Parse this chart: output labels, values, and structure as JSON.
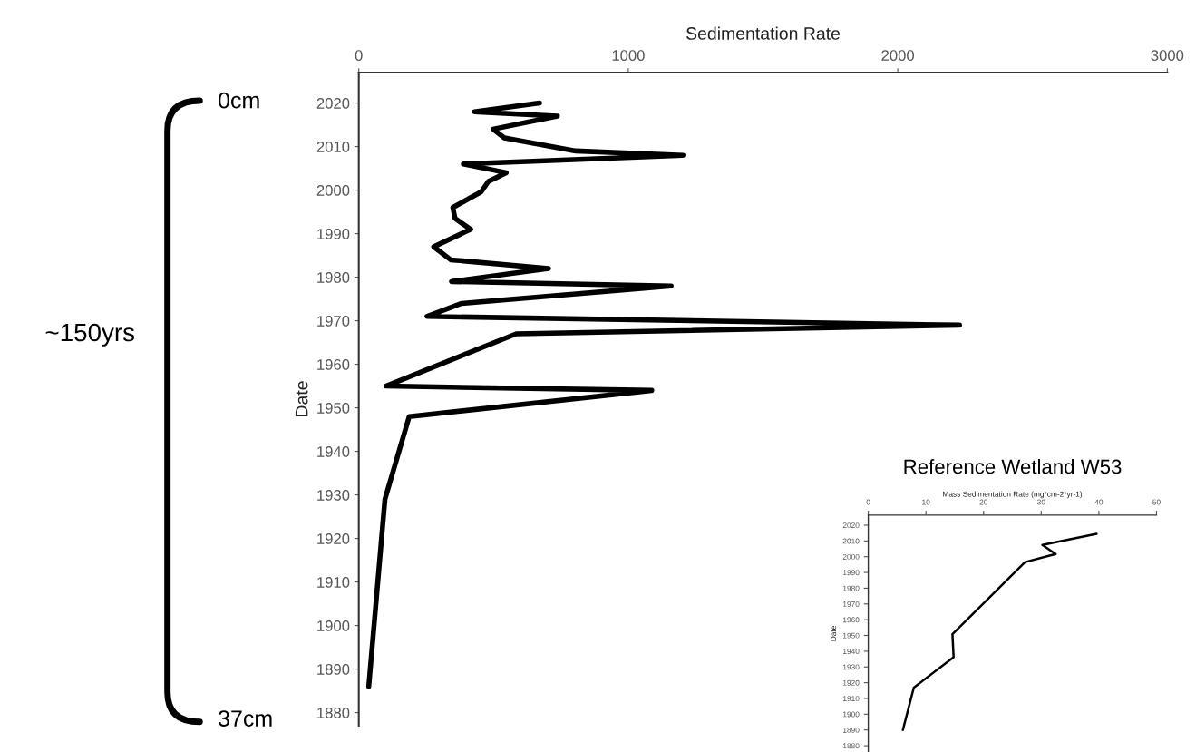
{
  "chart_data": [
    {
      "type": "line",
      "xlabel": "Sedimentation Rate",
      "ylabel": "Date",
      "annotations": [
        "0cm",
        "~150yrs",
        "37cm"
      ],
      "series": [
        {
          "color": "#000000",
          "x": [
            671,
            429,
            737,
            498,
            540,
            805,
            1203,
            388,
            547,
            481,
            454,
            349,
            357,
            415,
            278,
            341,
            704,
            344,
            1159,
            382,
            253,
            2229,
            584,
            101,
            1087,
            187,
            97,
            37
          ],
          "values": [
            2020,
            2018,
            2017,
            2014,
            2012,
            2009,
            2008,
            2006,
            2004,
            2002,
            1999.6,
            1996,
            1993.5,
            1991,
            1987,
            1984,
            1982,
            1979,
            1978,
            1974,
            1971,
            1969,
            1967,
            1955,
            1954,
            1948,
            1929,
            1886
          ]
        }
      ],
      "xlim": [
        0,
        3000
      ],
      "xticks": [
        0,
        1000,
        2000,
        3000
      ],
      "ylim": [
        1877,
        2027
      ],
      "yticks": [
        1880,
        1890,
        1900,
        1910,
        1920,
        1930,
        1940,
        1950,
        1960,
        1970,
        1980,
        1990,
        2000,
        2010,
        2020
      ],
      "grid": false,
      "legend": false
    },
    {
      "type": "line",
      "title": "Reference Wetland W53",
      "xlabel": "Mass Sedimentation Rate (mg*cm-2*yr-1)",
      "ylabel": "Date",
      "series": [
        {
          "color": "#000000",
          "x": [
            39.6,
            30.2,
            32.5,
            27.2,
            14.6,
            14.8,
            7.9,
            6.0
          ],
          "values": [
            2014.5,
            2007.5,
            2001.7,
            1996.6,
            1950.8,
            1936.2,
            1916.9,
            1890
          ]
        }
      ],
      "xlim": [
        0,
        50
      ],
      "xticks": [
        0,
        10,
        20,
        30,
        40,
        50
      ],
      "ylim": [
        1876,
        2026.4
      ],
      "yticks": [
        1880,
        1890,
        1900,
        1910,
        1920,
        1930,
        1940,
        1950,
        1960,
        1970,
        1980,
        1990,
        2000,
        2010,
        2020
      ],
      "grid": false,
      "legend": false
    }
  ]
}
